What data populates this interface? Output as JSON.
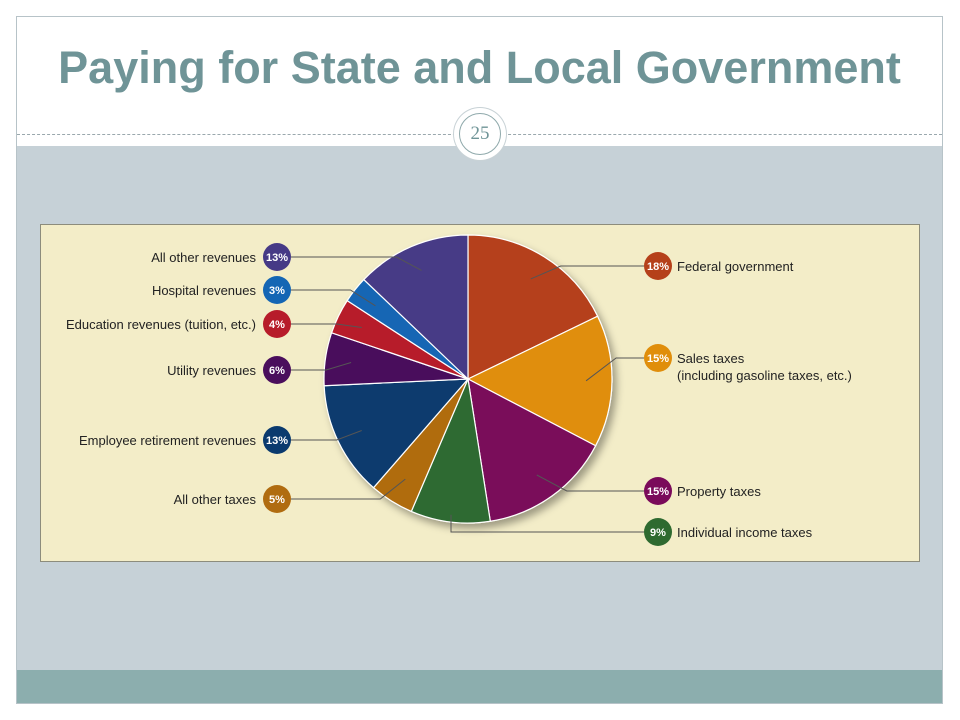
{
  "slide": {
    "title": "Paying for State and Local Government",
    "page_number": "25"
  },
  "chart_data": {
    "type": "pie",
    "title": "",
    "slices": [
      {
        "label": "Federal government",
        "value": 18,
        "value_label": "18%",
        "color": "#b5401a"
      },
      {
        "label": "Sales taxes\n(including gasoline taxes, etc.)",
        "value": 15,
        "value_label": "15%",
        "color": "#e08e0b"
      },
      {
        "label": "Property taxes",
        "value": 15,
        "value_label": "15%",
        "color": "#7a0a5a"
      },
      {
        "label": "Individual income taxes",
        "value": 9,
        "value_label": "9%",
        "color": "#2e6a30"
      },
      {
        "label": "All other taxes",
        "value": 5,
        "value_label": "5%",
        "color": "#b06c10"
      },
      {
        "label": "Employee retirement revenues",
        "value": 13,
        "value_label": "13%",
        "color": "#0a3a6e"
      },
      {
        "label": "Utility revenues",
        "value": 6,
        "value_label": "6%",
        "color": "#4a0e5c"
      },
      {
        "label": "Education revenues (tuition, etc.)",
        "value": 4,
        "value_label": "4%",
        "color": "#b71c2a"
      },
      {
        "label": "Hospital revenues",
        "value": 3,
        "value_label": "3%",
        "color": "#1466b4"
      },
      {
        "label": "All other revenues",
        "value": 13,
        "value_label": "13%",
        "color": "#463a86"
      }
    ],
    "background_color": "#f3edc8"
  }
}
